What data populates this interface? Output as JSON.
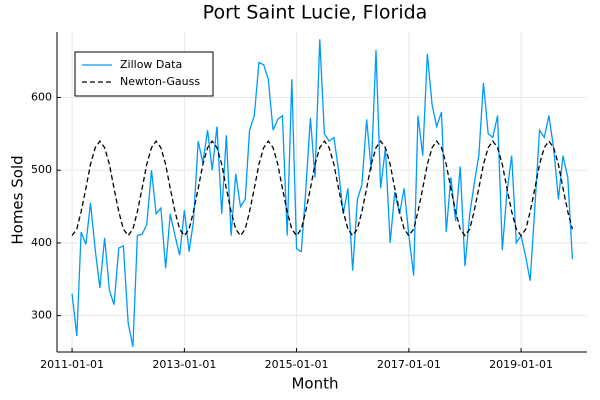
{
  "chart_data": {
    "type": "line",
    "title": "Port Saint Lucie, Florida",
    "x_label": "Month",
    "y_label": "Homes Sold",
    "x": [
      "2011-01-01",
      "2011-02-01",
      "2011-03-01",
      "2011-04-01",
      "2011-05-01",
      "2011-06-01",
      "2011-07-01",
      "2011-08-01",
      "2011-09-01",
      "2011-10-01",
      "2011-11-01",
      "2011-12-01",
      "2012-01-01",
      "2012-02-01",
      "2012-03-01",
      "2012-04-01",
      "2012-05-01",
      "2012-06-01",
      "2012-07-01",
      "2012-08-01",
      "2012-09-01",
      "2012-10-01",
      "2012-11-01",
      "2012-12-01",
      "2013-01-01",
      "2013-02-01",
      "2013-03-01",
      "2013-04-01",
      "2013-05-01",
      "2013-06-01",
      "2013-07-01",
      "2013-08-01",
      "2013-09-01",
      "2013-10-01",
      "2013-11-01",
      "2013-12-01",
      "2014-01-01",
      "2014-02-01",
      "2014-03-01",
      "2014-04-01",
      "2014-05-01",
      "2014-06-01",
      "2014-07-01",
      "2014-08-01",
      "2014-09-01",
      "2014-10-01",
      "2014-11-01",
      "2014-12-01",
      "2015-01-01",
      "2015-02-01",
      "2015-03-01",
      "2015-04-01",
      "2015-05-01",
      "2015-06-01",
      "2015-07-01",
      "2015-08-01",
      "2015-09-01",
      "2015-10-01",
      "2015-11-01",
      "2015-12-01",
      "2016-01-01",
      "2016-02-01",
      "2016-03-01",
      "2016-04-01",
      "2016-05-01",
      "2016-06-01",
      "2016-07-01",
      "2016-08-01",
      "2016-09-01",
      "2016-10-01",
      "2016-11-01",
      "2016-12-01",
      "2017-01-01",
      "2017-02-01",
      "2017-03-01",
      "2017-04-01",
      "2017-05-01",
      "2017-06-01",
      "2017-07-01",
      "2017-08-01",
      "2017-09-01",
      "2017-10-01",
      "2017-11-01",
      "2017-12-01",
      "2018-01-01",
      "2018-02-01",
      "2018-03-01",
      "2018-04-01",
      "2018-05-01",
      "2018-06-01",
      "2018-07-01",
      "2018-08-01",
      "2018-09-01",
      "2018-10-01",
      "2018-11-01",
      "2018-12-01",
      "2019-01-01",
      "2019-02-01",
      "2019-03-01",
      "2019-04-01",
      "2019-05-01",
      "2019-06-01",
      "2019-07-01",
      "2019-08-01",
      "2019-09-01",
      "2019-10-01",
      "2019-11-01",
      "2019-12-01"
    ],
    "series": [
      {
        "name": "Zillow Data",
        "color": "#009af9",
        "line_style": "solid",
        "values": [
          330,
          272,
          415,
          398,
          455,
          390,
          338,
          407,
          335,
          315,
          393,
          396,
          290,
          257,
          410,
          412,
          425,
          500,
          440,
          448,
          365,
          440,
          410,
          383,
          445,
          388,
          430,
          540,
          510,
          555,
          500,
          560,
          440,
          548,
          410,
          495,
          450,
          460,
          555,
          575,
          648,
          645,
          625,
          555,
          570,
          575,
          410,
          625,
          392,
          388,
          470,
          572,
          490,
          680,
          550,
          540,
          545,
          500,
          440,
          475,
          362,
          460,
          480,
          570,
          500,
          665,
          475,
          530,
          400,
          470,
          440,
          475,
          410,
          355,
          575,
          520,
          660,
          590,
          560,
          580,
          415,
          490,
          430,
          505,
          368,
          440,
          480,
          520,
          620,
          550,
          545,
          575,
          390,
          470,
          520,
          400,
          410,
          380,
          348,
          450,
          555,
          545,
          575,
          530,
          460,
          520,
          490,
          378
        ]
      },
      {
        "name": "Newton-Gauss",
        "color": "#000000",
        "line_style": "dashed",
        "values": [
          410,
          419,
          443,
          475,
          508,
          531,
          540,
          531,
          508,
          475,
          443,
          419,
          410,
          419,
          443,
          475,
          508,
          531,
          540,
          531,
          508,
          475,
          443,
          419,
          410,
          419,
          443,
          475,
          508,
          531,
          540,
          531,
          508,
          475,
          443,
          419,
          410,
          419,
          443,
          475,
          508,
          531,
          540,
          531,
          508,
          475,
          443,
          419,
          410,
          419,
          443,
          475,
          508,
          531,
          540,
          531,
          508,
          475,
          443,
          419,
          410,
          419,
          443,
          475,
          508,
          531,
          540,
          531,
          508,
          475,
          443,
          419,
          410,
          419,
          443,
          475,
          508,
          531,
          540,
          531,
          508,
          475,
          443,
          419,
          410,
          419,
          443,
          475,
          508,
          531,
          540,
          531,
          508,
          475,
          443,
          419,
          410,
          419,
          443,
          475,
          508,
          531,
          540,
          531,
          508,
          475,
          443,
          419
        ]
      }
    ],
    "xlim": [
      "2010-09-25",
      "2020-03-05"
    ],
    "xticks": [
      "2011-01-01",
      "2013-01-01",
      "2015-01-01",
      "2017-01-01",
      "2019-01-01"
    ],
    "ylim": [
      250,
      690
    ],
    "yticks": [
      300,
      400,
      500,
      600
    ],
    "grid": true,
    "legend": "top-left"
  }
}
